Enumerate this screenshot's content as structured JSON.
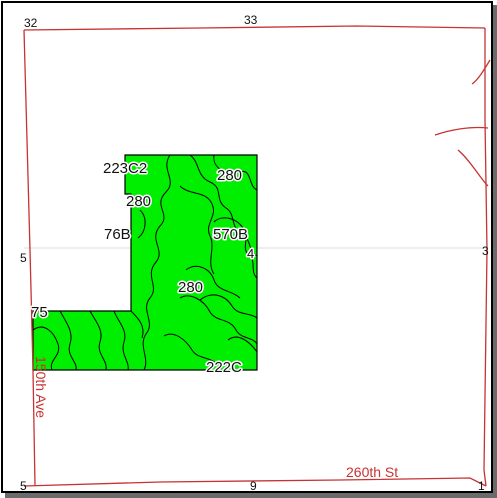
{
  "colors": {
    "parcel_fill": "#00ee00",
    "soil_lines": "#000000",
    "roads": "#c83232",
    "section_lines": "#777777"
  },
  "soil_labels": [
    "223C2",
    "280",
    "280",
    "76B",
    "570B",
    "4",
    "280",
    "75",
    "222C"
  ],
  "edge_labels": {
    "top_left": "32",
    "top_center": "33",
    "left_mid": "5",
    "right_mid": "3",
    "bottom_left": "5",
    "bottom_center": "9",
    "bottom_right": "1"
  },
  "roads": {
    "south": "260th St",
    "west": "150th Ave"
  }
}
